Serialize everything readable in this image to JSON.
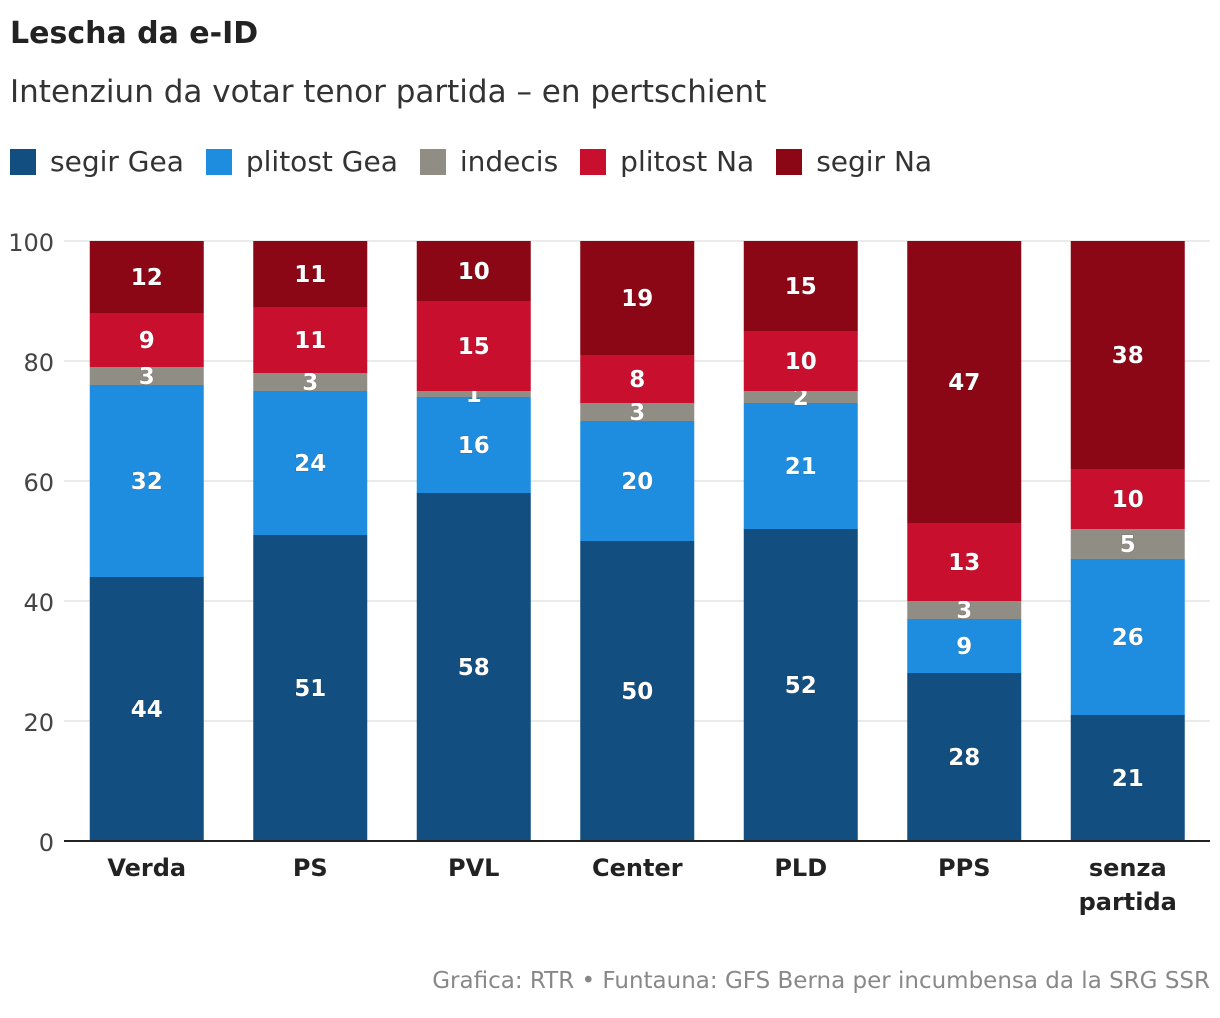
{
  "header": {
    "title": "Lescha da e-ID",
    "subtitle": "Intenziun da votar tenor partida – en pertschient"
  },
  "legend": [
    {
      "label": "segir Gea",
      "color": "#124e80"
    },
    {
      "label": "plitost Gea",
      "color": "#1e8de0"
    },
    {
      "label": "indecis",
      "color": "#908e84"
    },
    {
      "label": "plitost Na",
      "color": "#c8102e"
    },
    {
      "label": "segir Na",
      "color": "#8b0716"
    }
  ],
  "chart_data": {
    "type": "bar",
    "stacked": true,
    "title": "Lescha da e-ID",
    "subtitle": "Intenziun da votar tenor partida – en pertschient",
    "categories": [
      [
        "Verda"
      ],
      [
        "PS"
      ],
      [
        "PVL"
      ],
      [
        "Center"
      ],
      [
        "PLD"
      ],
      [
        "PPS"
      ],
      [
        "senza",
        "partida"
      ]
    ],
    "ylim": [
      0,
      100
    ],
    "yticks": [
      "0",
      "20",
      "40",
      "60",
      "80",
      "100"
    ],
    "series": [
      {
        "name": "segir Gea",
        "color": "#124e80",
        "values": [
          44,
          51,
          58,
          50,
          52,
          28,
          21
        ]
      },
      {
        "name": "plitost Gea",
        "color": "#1e8de0",
        "values": [
          32,
          24,
          16,
          20,
          21,
          9,
          26
        ]
      },
      {
        "name": "indecis",
        "color": "#908e84",
        "values": [
          3,
          3,
          1,
          3,
          2,
          3,
          5
        ]
      },
      {
        "name": "plitost Na",
        "color": "#c8102e",
        "values": [
          9,
          11,
          15,
          8,
          10,
          13,
          10
        ]
      },
      {
        "name": "segir Na",
        "color": "#8b0716",
        "values": [
          12,
          11,
          10,
          19,
          15,
          47,
          38
        ]
      }
    ]
  },
  "footer": {
    "source": "Grafica: RTR • Funtauna: GFS Berna per incumbensa da la SRG SSR"
  }
}
